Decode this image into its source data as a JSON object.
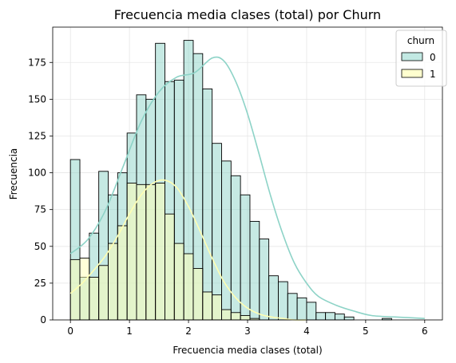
{
  "chart_data": {
    "type": "histogram",
    "title": "Frecuencia media clases (total) por Churn",
    "xlabel": "Frecuencia media clases (total)",
    "ylabel": "Frecuencia",
    "xlim": [
      -0.3,
      6.3
    ],
    "ylim": [
      0,
      199
    ],
    "xticks": [
      0,
      1,
      2,
      3,
      4,
      5,
      6
    ],
    "yticks": [
      0,
      25,
      50,
      75,
      100,
      125,
      150,
      175
    ],
    "grid": true,
    "bin_width": 0.16,
    "bin_start": 0,
    "legend": {
      "title": "churn",
      "placement": "top-right"
    },
    "series": [
      {
        "name": "0",
        "color": "#8dd3c7",
        "fill": "#c2e9e3",
        "counts": [
          109,
          29,
          59,
          101,
          85,
          100,
          127,
          153,
          150,
          188,
          162,
          163,
          190,
          181,
          157,
          120,
          108,
          98,
          85,
          67,
          55,
          30,
          26,
          18,
          15,
          12,
          5,
          5,
          4,
          2,
          0,
          0,
          0,
          1,
          0,
          0,
          0,
          0
        ],
        "kde": [
          [
            0,
            45
          ],
          [
            0.3,
            55
          ],
          [
            0.6,
            75
          ],
          [
            0.9,
            105
          ],
          [
            1.2,
            135
          ],
          [
            1.5,
            155
          ],
          [
            1.8,
            165
          ],
          [
            2.1,
            168
          ],
          [
            2.4,
            178
          ],
          [
            2.6,
            176
          ],
          [
            2.8,
            162
          ],
          [
            3.0,
            140
          ],
          [
            3.2,
            112
          ],
          [
            3.4,
            83
          ],
          [
            3.6,
            58
          ],
          [
            3.8,
            38
          ],
          [
            4.0,
            25
          ],
          [
            4.2,
            16
          ],
          [
            4.5,
            10
          ],
          [
            4.8,
            6
          ],
          [
            5.1,
            3
          ],
          [
            5.5,
            2
          ],
          [
            6.0,
            1
          ]
        ]
      },
      {
        "name": "1",
        "color": "#ffffb3",
        "fill": "#ffffcf",
        "counts": [
          41,
          42,
          29,
          37,
          52,
          64,
          93,
          92,
          92,
          93,
          72,
          52,
          45,
          35,
          19,
          17,
          7,
          5,
          3,
          1,
          0,
          0,
          0,
          0,
          0,
          0,
          0,
          0,
          0,
          0,
          0,
          0,
          0,
          0,
          0,
          0,
          0,
          0
        ],
        "kde": [
          [
            0,
            18
          ],
          [
            0.2,
            25
          ],
          [
            0.4,
            34
          ],
          [
            0.6,
            44
          ],
          [
            0.8,
            57
          ],
          [
            1.0,
            72
          ],
          [
            1.2,
            85
          ],
          [
            1.4,
            93
          ],
          [
            1.6,
            95
          ],
          [
            1.8,
            90
          ],
          [
            2.0,
            77
          ],
          [
            2.2,
            60
          ],
          [
            2.4,
            42
          ],
          [
            2.6,
            26
          ],
          [
            2.8,
            15
          ],
          [
            3.0,
            8
          ],
          [
            3.2,
            4
          ],
          [
            3.4,
            2
          ],
          [
            3.6,
            1
          ],
          [
            3.8,
            0
          ],
          [
            4.0,
            0
          ]
        ]
      }
    ]
  }
}
